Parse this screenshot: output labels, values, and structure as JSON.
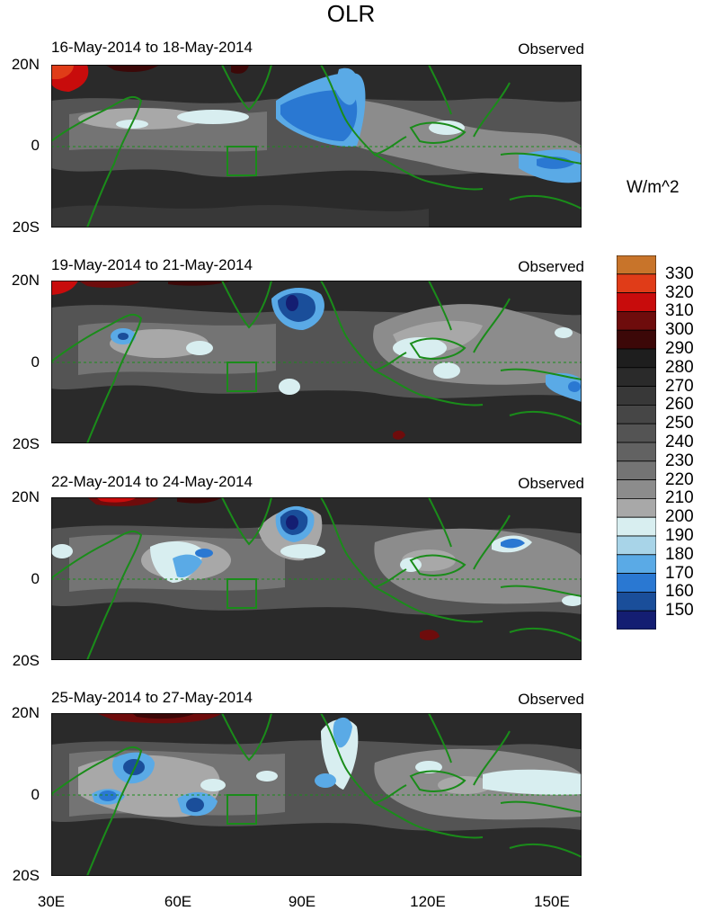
{
  "title": "OLR",
  "units": "W/m^2",
  "panels": [
    {
      "period": "16-May-2014 to 18-May-2014",
      "label": "Observed"
    },
    {
      "period": "19-May-2014 to 21-May-2014",
      "label": "Observed"
    },
    {
      "period": "22-May-2014 to 24-May-2014",
      "label": "Observed"
    },
    {
      "period": "25-May-2014 to 27-May-2014",
      "label": "Observed"
    }
  ],
  "lat_ticks": [
    "20N",
    "0",
    "20S"
  ],
  "lon_ticks": [
    "30E",
    "60E",
    "90E",
    "120E",
    "150E"
  ],
  "colorbar": {
    "labels": [
      "330",
      "320",
      "310",
      "300",
      "290",
      "280",
      "270",
      "260",
      "250",
      "240",
      "230",
      "220",
      "210",
      "200",
      "190",
      "180",
      "170",
      "160",
      "150"
    ],
    "colors": [
      "#c8742a",
      "#e03c18",
      "#c80c0c",
      "#6e0c0c",
      "#3c0808",
      "#1e1e1e",
      "#2a2a2a",
      "#383838",
      "#464646",
      "#545454",
      "#626262",
      "#747474",
      "#8c8c8c",
      "#a8a8a8",
      "#d8eef0",
      "#a8d4e8",
      "#5aaae6",
      "#2a78d2",
      "#1a4e9a",
      "#141e72"
    ]
  },
  "colors": {
    "coastline": "#1a8c1a",
    "background_field": "#2a2a2a"
  }
}
